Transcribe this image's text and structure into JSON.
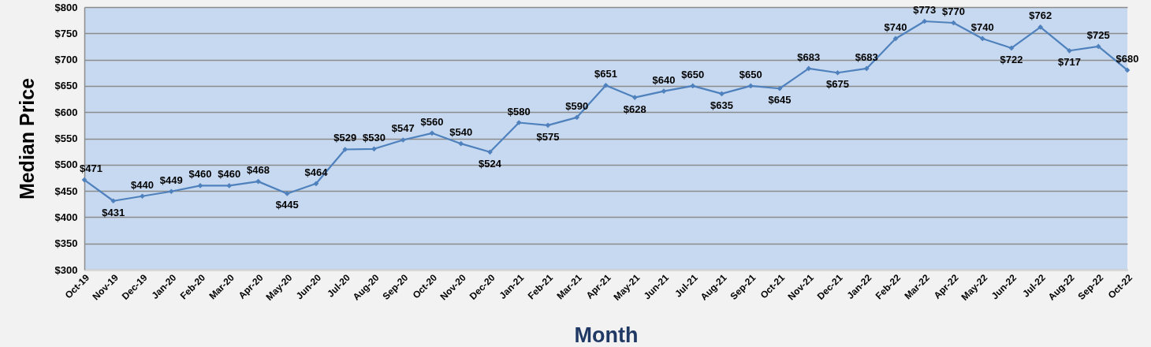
{
  "chart_data": {
    "type": "line",
    "xlabel": "Month",
    "ylabel": "Median Price",
    "categories": [
      "Oct-19",
      "Nov-19",
      "Dec-19",
      "Jan-20",
      "Feb-20",
      "Mar-20",
      "Apr-20",
      "May-20",
      "Jun-20",
      "Jul-20",
      "Aug-20",
      "Sep-20",
      "Oct-20",
      "Nov-20",
      "Dec-20",
      "Jan-21",
      "Feb-21",
      "Mar-21",
      "Apr-21",
      "May-21",
      "Jun-21",
      "Jul-21",
      "Aug-21",
      "Sep-21",
      "Oct-21",
      "Nov-21",
      "Dec-21",
      "Jan-22",
      "Feb-22",
      "Mar-22",
      "Apr-22",
      "May-22",
      "Jun-22",
      "Jul-22",
      "Aug-22",
      "Sep-22",
      "Oct-22"
    ],
    "values": [
      471,
      431,
      440,
      449,
      460,
      460,
      468,
      445,
      464,
      529,
      530,
      547,
      560,
      540,
      524,
      580,
      575,
      590,
      651,
      628,
      640,
      650,
      635,
      650,
      645,
      683,
      675,
      683,
      740,
      773,
      770,
      740,
      722,
      762,
      717,
      725,
      680
    ],
    "value_labels": [
      "$471",
      "$431",
      "$440",
      "$449",
      "$460",
      "$460",
      "$468",
      "$445",
      "$464",
      "$529",
      "$530",
      "$547",
      "$560",
      "$540",
      "$524",
      "$580",
      "$575",
      "$590",
      "$651",
      "$628",
      "$640",
      "$650",
      "$635",
      "$650",
      "$645",
      "$683",
      "$675",
      "$683",
      "$740",
      "$773",
      "$770",
      "$740",
      "$722",
      "$762",
      "$717",
      "$725",
      "$680"
    ],
    "color": "#4f81bd",
    "ylim": [
      300,
      800
    ],
    "yticks": [
      {
        "value": 300,
        "label": "$300"
      },
      {
        "value": 350,
        "label": "$350"
      },
      {
        "value": 400,
        "label": "$400"
      },
      {
        "value": 450,
        "label": "$450"
      },
      {
        "value": 500,
        "label": "$500"
      },
      {
        "value": 550,
        "label": "$550"
      },
      {
        "value": 600,
        "label": "$600"
      },
      {
        "value": 650,
        "label": "$650"
      },
      {
        "value": 700,
        "label": "$700"
      },
      {
        "value": 750,
        "label": "$750"
      },
      {
        "value": 800,
        "label": "$800"
      }
    ],
    "grid": "y",
    "marker": "diamond",
    "line_style": "solid"
  }
}
